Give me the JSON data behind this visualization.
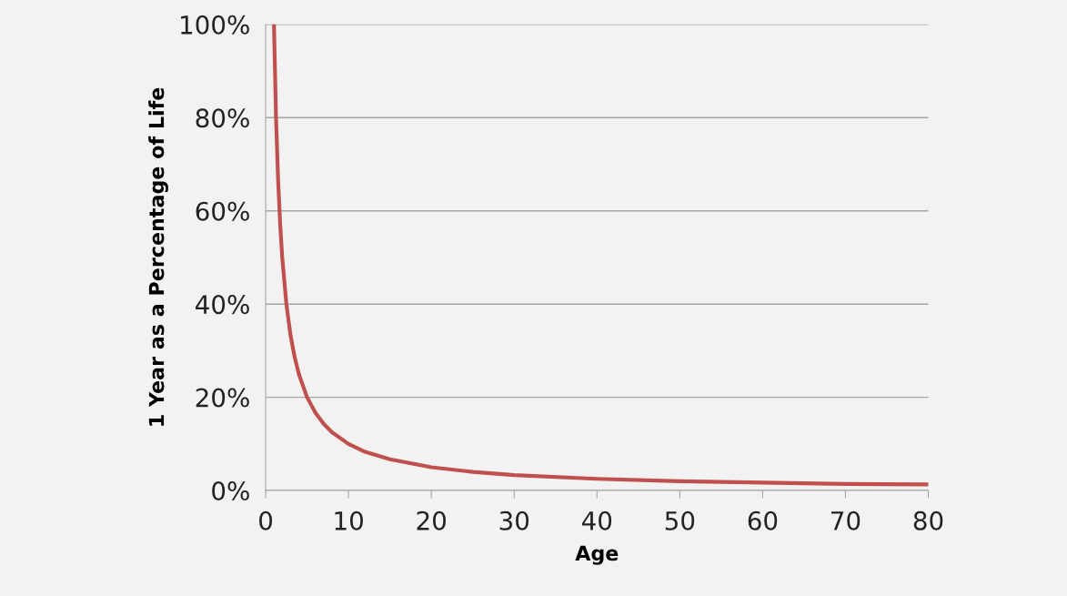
{
  "chart_data": {
    "type": "line",
    "xlabel": "Age",
    "ylabel": "1 Year as a Percentage of Life",
    "series": [
      {
        "color": "#c0504d",
        "x": [
          1,
          1.25,
          1.5,
          1.75,
          2,
          2.5,
          3,
          3.5,
          4,
          5,
          6,
          7,
          8,
          10,
          12,
          15,
          20,
          25,
          30,
          40,
          50,
          60,
          70,
          80
        ],
        "values": [
          100,
          80,
          66.7,
          57.1,
          50,
          40,
          33.3,
          28.6,
          25,
          20,
          16.7,
          14.3,
          12.5,
          10,
          8.3,
          6.7,
          5,
          4,
          3.3,
          2.5,
          2,
          1.7,
          1.4,
          1.3
        ]
      }
    ],
    "xlim": [
      0,
      80
    ],
    "xticks": [
      0,
      10,
      20,
      30,
      40,
      50,
      60,
      70,
      80
    ],
    "ylim": [
      0,
      100
    ],
    "yticks": [
      {
        "value": 0,
        "label": "0%"
      },
      {
        "value": 20,
        "label": "20%"
      },
      {
        "value": 40,
        "label": "40%"
      },
      {
        "value": 60,
        "label": "60%"
      },
      {
        "value": 80,
        "label": "80%"
      },
      {
        "value": 100,
        "label": "100%"
      }
    ],
    "grid": "y",
    "marker": "none",
    "line_style": "solid"
  }
}
